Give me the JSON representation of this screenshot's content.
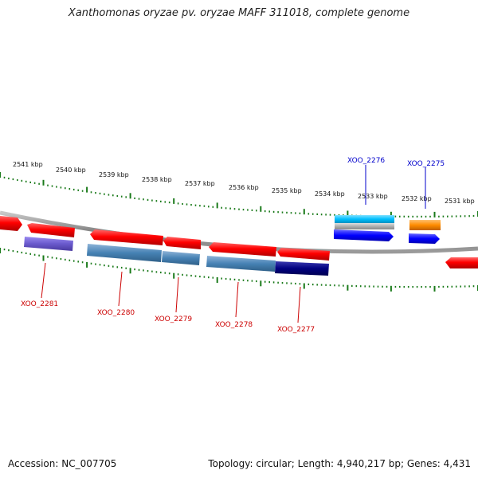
{
  "title": "Xanthomonas oryzae pv. oryzae MAFF 311018, complete genome",
  "footer": {
    "accession": "Accession: NC_007705",
    "topology": "Topology: circular; Length: 4,940,217 bp; Genes: 4,431"
  },
  "colors": {
    "forward_label": "#0000cc",
    "reverse_label": "#cc0000",
    "tick": "#1a7a1a",
    "backbone": "#8a8a8a"
  },
  "outer_ticks": [
    "2541 kbp",
    "2540 kbp",
    "2539 kbp",
    "2538 kbp",
    "2537 kbp",
    "2536 kbp",
    "2535 kbp",
    "2534 kbp",
    "2533 kbp",
    "2532 kbp",
    "2531 kbp"
  ],
  "labeled_genes": [
    {
      "name": "XOO_2276",
      "strand": "forward"
    },
    {
      "name": "XOO_2275",
      "strand": "forward"
    },
    {
      "name": "XOO_2281",
      "strand": "reverse"
    },
    {
      "name": "XOO_2280",
      "strand": "reverse"
    },
    {
      "name": "XOO_2279",
      "strand": "reverse"
    },
    {
      "name": "XOO_2278",
      "strand": "reverse"
    },
    {
      "name": "XOO_2277",
      "strand": "reverse"
    }
  ]
}
